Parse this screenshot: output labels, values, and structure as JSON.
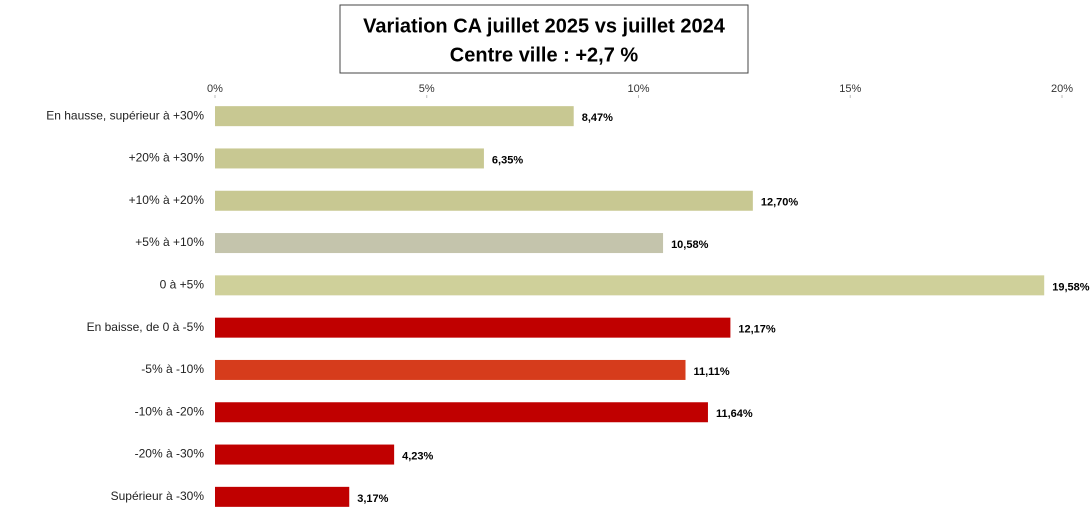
{
  "chart_data": {
    "type": "bar",
    "orientation": "horizontal",
    "title": [
      "Variation CA juillet 2025 vs juillet 2024",
      "Centre ville  : +2,7 %"
    ],
    "categories": [
      "En hausse, supérieur à +30%",
      "+20% à +30%",
      "+10% à +20%",
      "+5% à +10%",
      "0 à +5%",
      "En baisse, de 0 à -5%",
      "-5% à -10%",
      "-10% à -20%",
      "-20% à -30%",
      "Supérieur à -30%"
    ],
    "values": [
      8.47,
      6.35,
      12.7,
      10.58,
      19.58,
      12.17,
      11.11,
      11.64,
      4.23,
      3.17
    ],
    "value_labels": [
      "8,47%",
      "6,35%",
      "12,70%",
      "10,58%",
      "19,58%",
      "12,17%",
      "11,11%",
      "11,64%",
      "4,23%",
      "3,17%"
    ],
    "colors": [
      "#c8c892",
      "#c8c892",
      "#c8c892",
      "#c4c4ac",
      "#cfd09a",
      "#c00000",
      "#d63c1c",
      "#c00000",
      "#c00000",
      "#c00000"
    ],
    "xlim": [
      0,
      20
    ],
    "xticks": [
      {
        "value": 0,
        "label": "0%"
      },
      {
        "value": 5,
        "label": "5%"
      },
      {
        "value": 10,
        "label": "10%"
      },
      {
        "value": 15,
        "label": "15%"
      },
      {
        "value": 20,
        "label": "20%"
      }
    ],
    "grid": false
  }
}
